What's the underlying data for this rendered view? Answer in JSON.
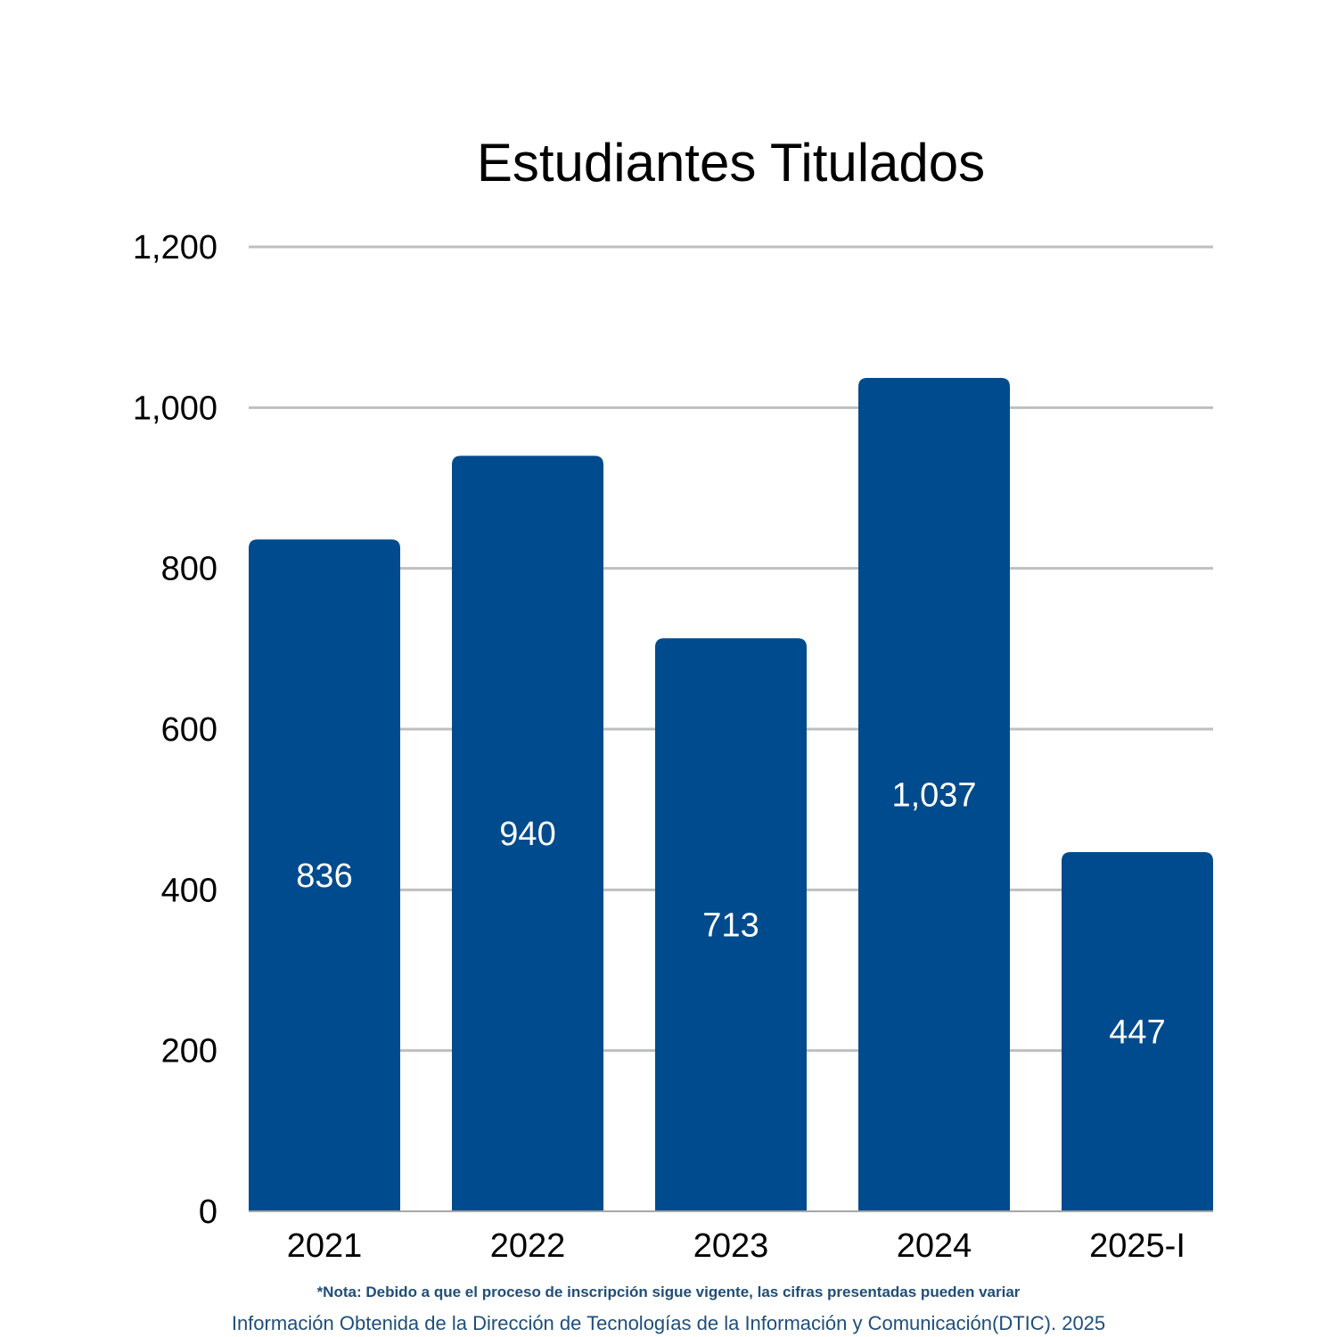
{
  "chart_data": {
    "type": "bar",
    "title": "Estudiantes Titulados",
    "categories": [
      "2021",
      "2022",
      "2023",
      "2024",
      "2025-I"
    ],
    "values": [
      836,
      940,
      713,
      1037,
      447
    ],
    "data_labels": [
      "836",
      "940",
      "713",
      "1,037",
      "447"
    ],
    "y_ticks": [
      0,
      200,
      400,
      600,
      800,
      1000,
      1200
    ],
    "y_tick_labels": [
      "0",
      "200",
      "400",
      "600",
      "800",
      "1,000",
      "1,200"
    ],
    "ylim": [
      0,
      1200
    ],
    "grid": true,
    "legend": "none",
    "bar_color": "#004b8d",
    "grid_color": "#bfbfbf",
    "axis_color": "#a6a6a6"
  },
  "footer": {
    "note": "*Nota: Debido a que el proceso de inscripción sigue vigente, las cifras presentadas pueden variar",
    "source": "Información Obtenida de la Dirección de Tecnologías de la Información y Comunicación(DTIC). 2025"
  }
}
